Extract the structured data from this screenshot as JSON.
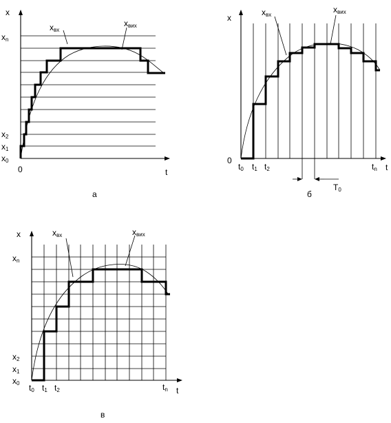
{
  "panel_a": {
    "caption": "а",
    "x_axis": "x",
    "t_axis": "t",
    "origin": "0",
    "x0": "x",
    "x0_sub": "0",
    "x1": "x",
    "x1_sub": "1",
    "x2": "x",
    "x2_sub": "2",
    "xn": "x",
    "xn_sub": "n",
    "in_label": "x",
    "in_sub": "вх",
    "out_label": "x",
    "out_sub": "вих"
  },
  "panel_b": {
    "caption": "б",
    "x_axis": "x",
    "t_axis": "t",
    "origin": "0",
    "t0": "t",
    "t0_sub": "0",
    "t1": "t",
    "t1_sub": "1",
    "t2": "t",
    "t2_sub": "2",
    "tn": "t",
    "tn_sub": "n",
    "period": "T",
    "period_sub": "0",
    "in_label": "x",
    "in_sub": "вх",
    "out_label": "x",
    "out_sub": "вих"
  },
  "panel_c": {
    "caption": "в",
    "x_axis": "x",
    "t_axis": "t",
    "x0": "x",
    "x0_sub": "0",
    "x1": "x",
    "x1_sub": "1",
    "x2": "x",
    "x2_sub": "2",
    "xn": "x",
    "xn_sub": "n",
    "t0": "t",
    "t0_sub": "0",
    "t1": "t",
    "t1_sub": "1",
    "t2": "t",
    "t2_sub": "2",
    "tn": "t",
    "tn_sub": "n",
    "in_label": "x",
    "in_sub": "вх",
    "out_label": "x",
    "out_sub": "вих"
  }
}
